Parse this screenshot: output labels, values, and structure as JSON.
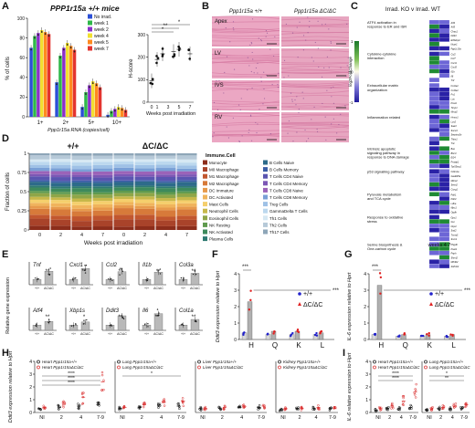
{
  "panel_letters": [
    "A",
    "B",
    "C",
    "D",
    "E",
    "F",
    "G",
    "H",
    "I"
  ],
  "chart_data": [
    {
      "id": "A",
      "type": "bar",
      "title": "PPP1r15a +/+ mice",
      "xlabel": "Ppp1r15a RNA (copies/cell)",
      "ylabel": "% of cells",
      "categories": [
        "1+",
        "2+",
        "5+",
        "10+"
      ],
      "ylim": [
        0,
        100
      ],
      "yticks": [
        0,
        20,
        40,
        60,
        80,
        100
      ],
      "legend": [
        "No irrad.",
        "week 1",
        "week 2",
        "week 4",
        "week 5",
        "week 7"
      ],
      "colors": [
        "#2b4fd6",
        "#2fb84a",
        "#8b2fc9",
        "#f2e030",
        "#ff8a1f",
        "#e3342f"
      ],
      "series": [
        {
          "name": "No irrad.",
          "values": [
            70,
            35,
            10,
            2
          ]
        },
        {
          "name": "week 1",
          "values": [
            82,
            62,
            25,
            6
          ]
        },
        {
          "name": "week 2",
          "values": [
            85,
            70,
            32,
            8
          ]
        },
        {
          "name": "week 4",
          "values": [
            88,
            75,
            36,
            10
          ]
        },
        {
          "name": "week 5",
          "values": [
            86,
            72,
            34,
            9
          ]
        },
        {
          "name": "week 7",
          "values": [
            84,
            68,
            30,
            7
          ]
        }
      ]
    },
    {
      "id": "A-hscore",
      "type": "scatter",
      "xlabel": "Weeks post irradiation",
      "ylabel": "H-score",
      "x": [
        0,
        1,
        2,
        4,
        5,
        7
      ],
      "xticks": [
        "0",
        "1",
        "3",
        "5",
        "7"
      ],
      "ylim": [
        0,
        300
      ],
      "yticks": [
        0,
        100,
        200,
        300
      ],
      "means": [
        95,
        190,
        215,
        225,
        235,
        215
      ],
      "sig": [
        "*",
        "**",
        "*"
      ]
    },
    {
      "id": "B",
      "type": "image-grid",
      "col_headers": [
        "Ppp1r15a +/+",
        "Ppp1r15a ΔC/ΔC"
      ],
      "row_labels": [
        "Apex",
        "LV",
        "IVS",
        "RV"
      ]
    },
    {
      "id": "C",
      "type": "heatmap",
      "title": "Irrad. KO v Irrad. WT",
      "colorbar_label": "log2FoldChange",
      "colorbar_ticks": [
        "1",
        "0",
        "-1"
      ],
      "xlabel": "weeks 4  7",
      "pathways": [
        "ATF4 activation in response to ER and ISR",
        "Cytokine-cytokine interaction",
        "Extracellular matrix organization",
        "Inflammation related",
        "Intrinsic apoptotic signaling pathway in response to DNA damage",
        "p53 signalling pathway",
        "Pyruvate metabolism and TCA cycle",
        "Response to oxidative stress",
        "Serine biosynthesis & One-carbon cycle"
      ],
      "genes": [
        [
          "Atf4",
          "Atf5",
          "Chac1",
          "Ddit3",
          "Eif4ebp1",
          "Nupr1",
          "Ppp1r15a"
        ],
        [
          "Ccl2",
          "Ccl7",
          "Cxcl1",
          "Cxcl5",
          "Il1b",
          "Il6",
          "Tnf"
        ],
        [
          "Col1a1",
          "Col3a1",
          "Fn1",
          "Lox",
          "Postn",
          "Timp1",
          "Mmp2"
        ],
        [
          "Hmox1",
          "Lcn2",
          "Saa3",
          "Socs3",
          "Serpina3n",
          "Thbs1",
          "Tnc"
        ],
        [
          "Bax",
          "Bbc3",
          "Ei24",
          "Pmaip1",
          "Trp53inp1"
        ],
        [
          "Cdkn1a",
          "Gadd45a",
          "Mdm2",
          "Sesn2",
          "Ccng1"
        ],
        [
          "Pdk1",
          "Pdk4",
          "Ldha",
          "Mpc1",
          "Ogdh"
        ],
        [
          "Gpx1",
          "Gsr",
          "Nqo1",
          "Sod2",
          "Txnrd1",
          "Srxn1"
        ],
        [
          "Phgdh",
          "Psat1",
          "Psph",
          "Shmt2",
          "Mthfd2",
          "Aldh1l2"
        ]
      ]
    },
    {
      "id": "D",
      "type": "bar",
      "stacked": true,
      "ylabel": "Fraction of cells",
      "xlabel": "Weeks post irradiation",
      "group_labels": [
        "+/+",
        "ΔC/ΔC"
      ],
      "categories": [
        "0",
        "2",
        "4",
        "7",
        "0",
        "2",
        "4",
        "7"
      ],
      "legend_title": "Immune.Cell",
      "legend": [
        "Monocyte",
        "M0 Macrophage",
        "M1 Macrophage",
        "M2 Macrophage",
        "DC Immature",
        "DC Activated",
        "Mast Cells",
        "Neutrophil Cells",
        "Eosinophil Cells",
        "NK Resting",
        "NK Activated",
        "Plasma Cells",
        "B Cells Naive",
        "B Cells Memory",
        "T Cells CD4 Naive",
        "T Cells CD4 Memory",
        "T Cells CD8 Naive",
        "T Cells CD8 Memory",
        "Treg Cells",
        "GammaDelta T Cells",
        "Th1 Cells",
        "Th2 Cells",
        "Th17 Cells"
      ],
      "colors": [
        "#8c2d1b",
        "#a9432a",
        "#c2572f",
        "#d77a3a",
        "#e79a4c",
        "#f0b45c",
        "#f5cf6c",
        "#c7b84a",
        "#8fa648",
        "#5f9a4e",
        "#3e8a5c",
        "#2f7a72",
        "#2d6b8a",
        "#3b5ea6",
        "#5a55b0",
        "#7c57b5",
        "#9b63b8",
        "#7aa0d6",
        "#9fc1e6",
        "#bcd8ee",
        "#d6e8f3",
        "#b6c9d8",
        "#8ea6b8"
      ]
    },
    {
      "id": "E",
      "type": "bar",
      "ylabel": "Relative gene expression",
      "genes": [
        "Tnf",
        "Cxcl1",
        "Ccl2",
        "Il1b",
        "Col3a",
        "Atf4",
        "Xbp1s",
        "Ddit3",
        "Il6",
        "Col1a"
      ],
      "categories": [
        "+/+",
        "ΔC/ΔC"
      ],
      "values": [
        [
          1,
          2.6
        ],
        [
          1,
          3.1
        ],
        [
          1,
          2.5
        ],
        [
          1,
          2.4
        ],
        [
          1,
          2.2
        ],
        [
          1,
          1.7
        ],
        [
          1,
          1.6
        ],
        [
          1,
          2.8
        ],
        [
          1,
          3.2
        ],
        [
          1,
          2.1
        ]
      ],
      "sig": [
        "**",
        "**",
        "**",
        "*",
        "**",
        "**",
        "*",
        "**",
        "**",
        "**"
      ]
    },
    {
      "id": "F",
      "type": "bar",
      "ylabel": "Ddit3 expression relative to Hprt",
      "categories": [
        "H",
        "Q",
        "K",
        "L"
      ],
      "ylim": [
        0,
        4
      ],
      "yticks": [
        0,
        1,
        2,
        3,
        4
      ],
      "series": [
        {
          "name": "+/+",
          "values": [
            0.4,
            0.3,
            0.3,
            0.3
          ]
        },
        {
          "name": "ΔC/ΔC",
          "values": [
            2.3,
            0.5,
            0.5,
            0.4
          ]
        }
      ],
      "sig": [
        "***",
        "***"
      ]
    },
    {
      "id": "G",
      "type": "bar",
      "ylabel": "IL-6 expression relative to Hprt",
      "categories": [
        "H",
        "Q",
        "K",
        "L"
      ],
      "ylim": [
        0,
        4
      ],
      "yticks": [
        0,
        1,
        2,
        3,
        4
      ],
      "series": [
        {
          "name": "+/+",
          "values": [
            0.3,
            0.2,
            0.2,
            0.2
          ]
        },
        {
          "name": "ΔC/ΔC",
          "values": [
            3.3,
            0.3,
            0.3,
            0.3
          ]
        }
      ],
      "sig": [
        "***",
        "***"
      ]
    },
    {
      "id": "H",
      "type": "scatter",
      "ylabel": "Ddit3 expression relative to Hprt",
      "ylim": [
        0,
        4
      ],
      "yticks": [
        0,
        1,
        2,
        3,
        4
      ],
      "x": [
        "NI",
        "2",
        "4",
        "7-9"
      ],
      "subpanels": [
        {
          "legend": [
            "Heart Ppp1r15a+/+",
            "Heart Ppp1r15aΔC/ΔC"
          ],
          "colors": [
            "#111111",
            "#d92b2b"
          ],
          "means": [
            [
              0.3,
              0.4,
              0.5,
              0.6
            ],
            [
              0.4,
              0.7,
              1.2,
              2.4
            ]
          ],
          "sig": [
            "****",
            "****",
            "****"
          ]
        },
        {
          "legend": [
            "Lung Ppp1r15a+/+",
            "Lung Ppp1r15aΔC/ΔC"
          ],
          "colors": [
            "#111111",
            "#d92b2b"
          ],
          "means": [
            [
              0.3,
              0.4,
              0.5,
              0.5
            ],
            [
              0.4,
              0.6,
              0.8,
              0.9
            ]
          ],
          "sig": [
            "*"
          ]
        },
        {
          "legend": [
            "Liver Ppp1r15a+/+",
            "Liver Ppp1r15aΔC/ΔC"
          ],
          "colors": [
            "#111111",
            "#d92b2b"
          ],
          "means": [
            [
              0.3,
              0.3,
              0.4,
              0.4
            ],
            [
              0.3,
              0.4,
              0.5,
              0.5
            ]
          ],
          "sig": []
        },
        {
          "legend": [
            "Kidney Ppp1r15a+/+",
            "Kidney Ppp1r15aΔC/ΔC"
          ],
          "colors": [
            "#111111",
            "#d92b2b"
          ],
          "means": [
            [
              0.2,
              0.3,
              0.3,
              0.3
            ],
            [
              0.3,
              0.3,
              0.4,
              0.3
            ]
          ],
          "sig": []
        }
      ]
    },
    {
      "id": "I",
      "type": "scatter",
      "ylabel": "IL-6 relative expression to Hprt",
      "ylim": [
        0,
        4
      ],
      "yticks": [
        0,
        1,
        2,
        3,
        4
      ],
      "x": [
        "NI",
        "2",
        "4",
        "7-9"
      ],
      "subpanels": [
        {
          "legend": [
            "Heart Ppp1r15a+/+",
            "Heart Ppp1r15aΔC/ΔC"
          ],
          "colors": [
            "#111111",
            "#d92b2b"
          ],
          "means": [
            [
              0.2,
              0.3,
              0.3,
              0.4
            ],
            [
              0.3,
              0.5,
              0.9,
              1.6
            ]
          ],
          "sig": [
            "****",
            "****"
          ]
        },
        {
          "legend": [
            "Lung Ppp1r15a+/+",
            "Lung Ppp1r15aΔC/ΔC"
          ],
          "colors": [
            "#111111",
            "#d92b2b"
          ],
          "means": [
            [
              0.2,
              0.3,
              0.3,
              0.3
            ],
            [
              0.3,
              0.4,
              0.5,
              0.6
            ]
          ],
          "sig": [
            "*",
            "**"
          ]
        }
      ]
    }
  ]
}
